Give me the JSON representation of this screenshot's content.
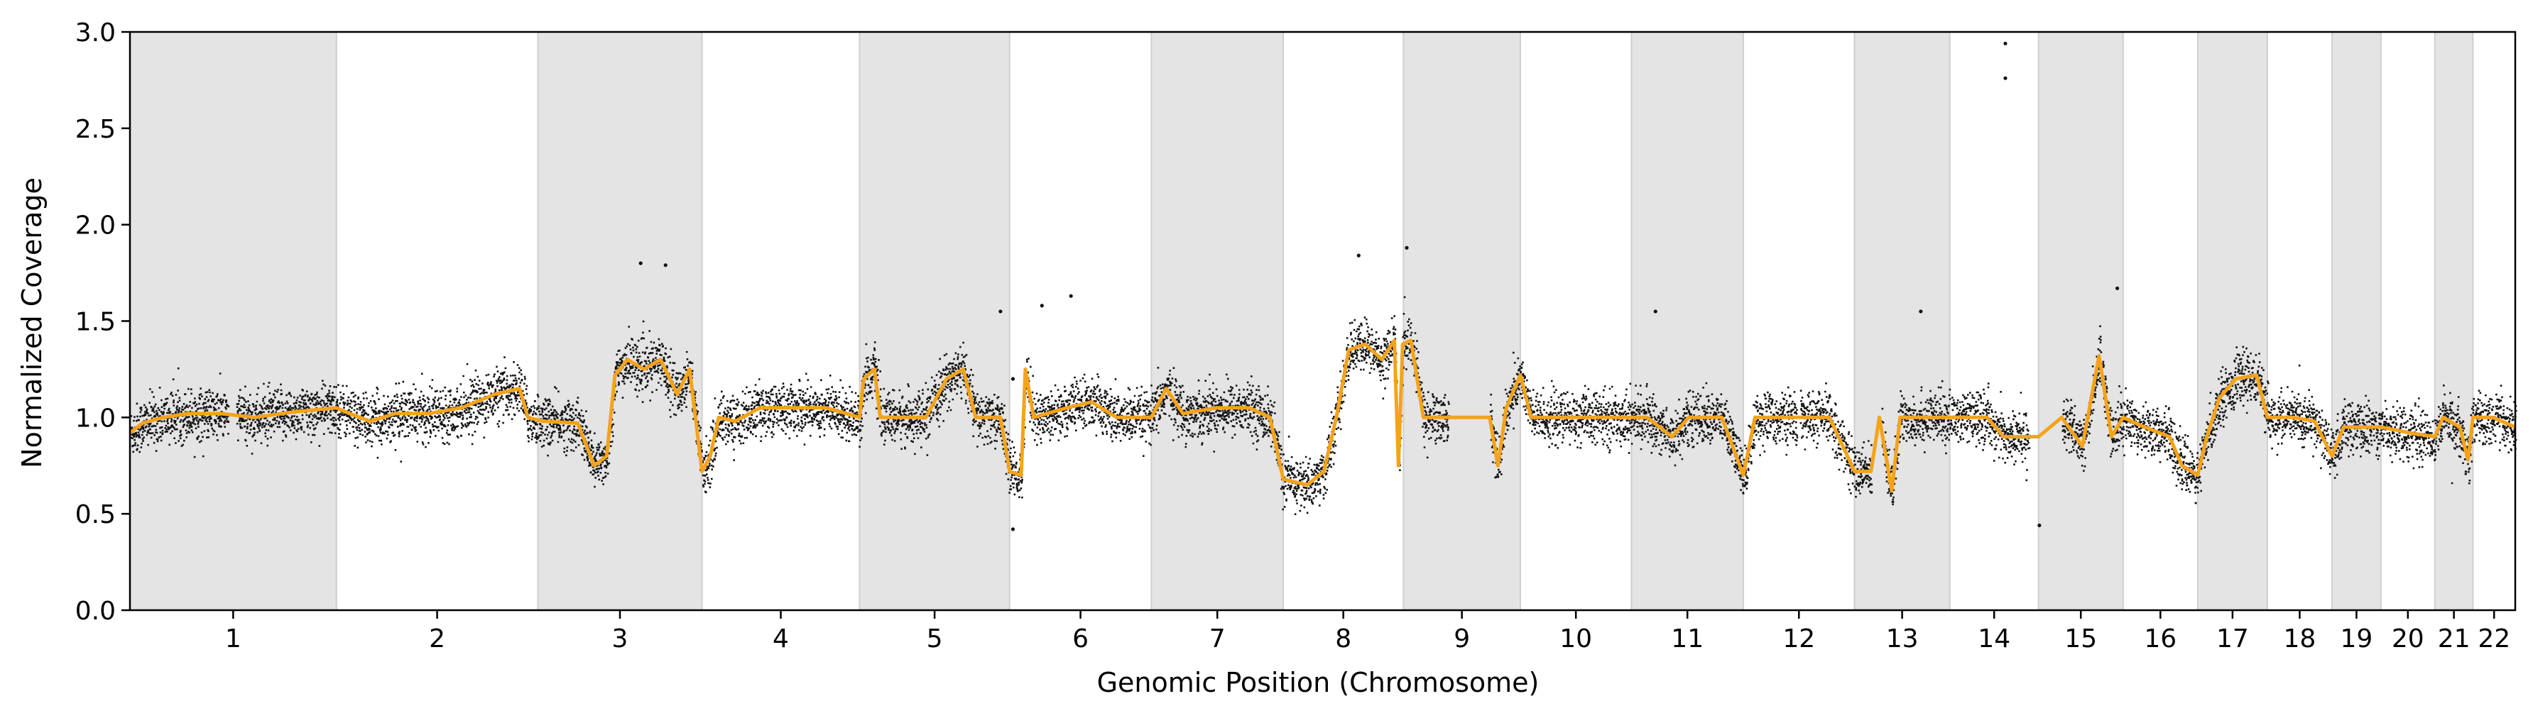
{
  "chart_data": {
    "type": "scatter",
    "title": "",
    "xlabel": "Genomic Position (Chromosome)",
    "ylabel": "Normalized Coverage",
    "ylim": [
      0.0,
      3.0
    ],
    "yticks": [
      "0.0",
      "0.5",
      "1.0",
      "1.5",
      "2.0",
      "2.5",
      "3.0"
    ],
    "grid": false,
    "legend": "none",
    "chromosomes": [
      {
        "label": "1",
        "start": 0,
        "end": 249,
        "shaded": true
      },
      {
        "label": "2",
        "start": 249,
        "end": 492,
        "shaded": false
      },
      {
        "label": "3",
        "start": 492,
        "end": 690,
        "shaded": true
      },
      {
        "label": "4",
        "start": 690,
        "end": 880,
        "shaded": false
      },
      {
        "label": "5",
        "start": 880,
        "end": 1061,
        "shaded": true
      },
      {
        "label": "6",
        "start": 1061,
        "end": 1232,
        "shaded": false
      },
      {
        "label": "7",
        "start": 1232,
        "end": 1391,
        "shaded": true
      },
      {
        "label": "8",
        "start": 1391,
        "end": 1536,
        "shaded": false
      },
      {
        "label": "9",
        "start": 1536,
        "end": 1677,
        "shaded": true
      },
      {
        "label": "10",
        "start": 1677,
        "end": 1811,
        "shaded": false
      },
      {
        "label": "11",
        "start": 1811,
        "end": 1946,
        "shaded": true
      },
      {
        "label": "12",
        "start": 1946,
        "end": 2080,
        "shaded": false
      },
      {
        "label": "13",
        "start": 2080,
        "end": 2195,
        "shaded": true
      },
      {
        "label": "14",
        "start": 2195,
        "end": 2302,
        "shaded": false
      },
      {
        "label": "15",
        "start": 2302,
        "end": 2404,
        "shaded": true
      },
      {
        "label": "16",
        "start": 2404,
        "end": 2494,
        "shaded": false
      },
      {
        "label": "17",
        "start": 2494,
        "end": 2578,
        "shaded": true
      },
      {
        "label": "18",
        "start": 2578,
        "end": 2656,
        "shaded": false
      },
      {
        "label": "19",
        "start": 2656,
        "end": 2715,
        "shaded": true
      },
      {
        "label": "20",
        "start": 2715,
        "end": 2780,
        "shaded": false
      },
      {
        "label": "21",
        "start": 2780,
        "end": 2826,
        "shaded": true
      },
      {
        "label": "22",
        "start": 2826,
        "end": 2877,
        "shaded": false
      }
    ],
    "series": [
      {
        "kind": "segment_line",
        "color": "#f5a31a",
        "segments": [
          [
            0,
            0.92
          ],
          [
            15,
            0.97
          ],
          [
            40,
            1.0
          ],
          [
            70,
            1.02
          ],
          [
            110,
            1.02
          ],
          [
            150,
            1.0
          ],
          [
            200,
            1.03
          ],
          [
            249,
            1.05
          ],
          [
            265,
            1.02
          ],
          [
            290,
            0.98
          ],
          [
            320,
            1.02
          ],
          [
            360,
            1.02
          ],
          [
            400,
            1.05
          ],
          [
            440,
            1.12
          ],
          [
            470,
            1.15
          ],
          [
            480,
            1.0
          ],
          [
            500,
            0.98
          ],
          [
            540,
            0.97
          ],
          [
            560,
            0.75
          ],
          [
            575,
            0.8
          ],
          [
            585,
            1.22
          ],
          [
            600,
            1.3
          ],
          [
            620,
            1.25
          ],
          [
            640,
            1.3
          ],
          [
            660,
            1.12
          ],
          [
            675,
            1.25
          ],
          [
            690,
            0.72
          ],
          [
            700,
            0.8
          ],
          [
            710,
            1.0
          ],
          [
            730,
            0.98
          ],
          [
            760,
            1.05
          ],
          [
            800,
            1.05
          ],
          [
            840,
            1.05
          ],
          [
            880,
            1.0
          ],
          [
            885,
            1.2
          ],
          [
            898,
            1.25
          ],
          [
            905,
            1.0
          ],
          [
            930,
            1.0
          ],
          [
            960,
            1.0
          ],
          [
            985,
            1.2
          ],
          [
            1005,
            1.25
          ],
          [
            1020,
            1.0
          ],
          [
            1050,
            1.0
          ],
          [
            1061,
            0.72
          ],
          [
            1075,
            0.7
          ],
          [
            1080,
            1.25
          ],
          [
            1090,
            1.0
          ],
          [
            1130,
            1.05
          ],
          [
            1160,
            1.08
          ],
          [
            1190,
            1.0
          ],
          [
            1232,
            1.0
          ],
          [
            1250,
            1.15
          ],
          [
            1270,
            1.02
          ],
          [
            1310,
            1.05
          ],
          [
            1350,
            1.05
          ],
          [
            1375,
            1.0
          ],
          [
            1391,
            0.68
          ],
          [
            1420,
            0.65
          ],
          [
            1440,
            0.72
          ],
          [
            1455,
            1.0
          ],
          [
            1470,
            1.35
          ],
          [
            1490,
            1.38
          ],
          [
            1510,
            1.3
          ],
          [
            1525,
            1.4
          ],
          [
            1530,
            0.75
          ],
          [
            1535,
            1.38
          ],
          [
            1545,
            1.4
          ],
          [
            1560,
            1.0
          ],
          [
            1600,
            1.0
          ],
          [
            1640,
            1.0
          ],
          [
            1650,
            0.75
          ],
          [
            1660,
            1.05
          ],
          [
            1677,
            1.22
          ],
          [
            1690,
            1.0
          ],
          [
            1730,
            1.0
          ],
          [
            1780,
            1.0
          ],
          [
            1811,
            1.0
          ],
          [
            1830,
            1.0
          ],
          [
            1860,
            0.9
          ],
          [
            1880,
            1.0
          ],
          [
            1920,
            1.0
          ],
          [
            1946,
            0.7
          ],
          [
            1960,
            1.0
          ],
          [
            2000,
            1.0
          ],
          [
            2050,
            1.0
          ],
          [
            2080,
            0.72
          ],
          [
            2100,
            0.72
          ],
          [
            2110,
            1.0
          ],
          [
            2125,
            0.62
          ],
          [
            2135,
            1.0
          ],
          [
            2170,
            1.0
          ],
          [
            2195,
            1.0
          ],
          [
            2240,
            1.0
          ],
          [
            2260,
            0.9
          ],
          [
            2302,
            0.9
          ],
          [
            2330,
            1.0
          ],
          [
            2355,
            0.85
          ],
          [
            2375,
            1.32
          ],
          [
            2390,
            0.9
          ],
          [
            2404,
            1.0
          ],
          [
            2430,
            0.95
          ],
          [
            2460,
            0.9
          ],
          [
            2475,
            0.75
          ],
          [
            2494,
            0.7
          ],
          [
            2505,
            0.9
          ],
          [
            2520,
            1.1
          ],
          [
            2540,
            1.2
          ],
          [
            2565,
            1.22
          ],
          [
            2578,
            1.0
          ],
          [
            2610,
            1.0
          ],
          [
            2635,
            0.98
          ],
          [
            2656,
            0.8
          ],
          [
            2670,
            0.95
          ],
          [
            2700,
            0.95
          ],
          [
            2715,
            0.95
          ],
          [
            2750,
            0.92
          ],
          [
            2780,
            0.9
          ],
          [
            2790,
            1.0
          ],
          [
            2810,
            0.95
          ],
          [
            2820,
            0.78
          ],
          [
            2826,
            1.0
          ],
          [
            2850,
            1.0
          ],
          [
            2877,
            0.95
          ]
        ]
      },
      {
        "kind": "bin_points",
        "color": "#000000",
        "note_points": "approx 1 Mb bins; dense cloud around segment level with sd ~0.06",
        "spread": 0.065,
        "outliers": [
          [
            2262,
            2.94
          ],
          [
            2262,
            2.76
          ],
          [
            1540,
            1.88
          ],
          [
            1482,
            1.84
          ],
          [
            616,
            1.8
          ],
          [
            646,
            1.79
          ],
          [
            2397,
            1.67
          ],
          [
            1135,
            1.63
          ],
          [
            1065,
            1.2
          ],
          [
            1065,
            0.42
          ],
          [
            2303,
            0.44
          ],
          [
            1840,
            1.55
          ],
          [
            2160,
            1.55
          ],
          [
            1100,
            1.58
          ],
          [
            1050,
            1.55
          ]
        ]
      }
    ]
  }
}
